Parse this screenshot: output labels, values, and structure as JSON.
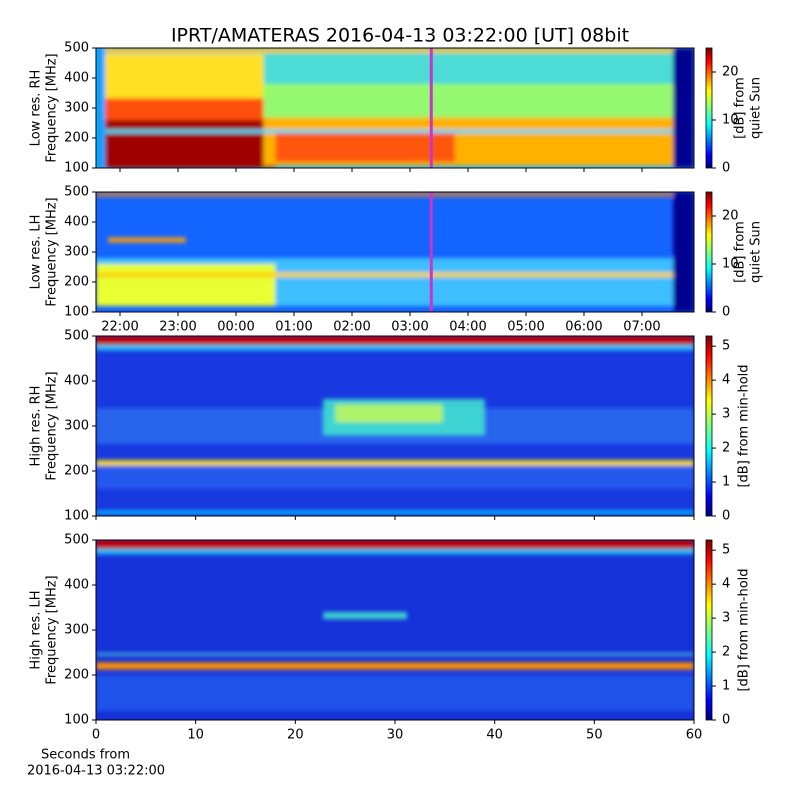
{
  "title": "IPRT/AMATERAS 2016-04-13 03:22:00 [UT]   08bit",
  "chart_data": [
    {
      "type": "heatmap",
      "ylabel": [
        "Low res. RH",
        "Frequency [MHz]"
      ],
      "ylim": [
        100,
        500
      ],
      "yticks": [
        100,
        200,
        300,
        400,
        500
      ],
      "xlim": [
        21.586,
        31.897
      ],
      "xticks": [
        22,
        23,
        24,
        25,
        26,
        27,
        28,
        29,
        30,
        31
      ],
      "cursor": 27.367,
      "cursor_color": "#cc33cc",
      "colorbar": {
        "label": [
          "[dB] from",
          "quiet Sun"
        ],
        "lim": [
          0,
          25
        ],
        "ticks": [
          0,
          10,
          20
        ]
      }
    },
    {
      "type": "heatmap",
      "ylabel": [
        "Low res. LH",
        "Frequency [MHz]"
      ],
      "ylim": [
        100,
        500
      ],
      "yticks": [
        100,
        200,
        300,
        400,
        500
      ],
      "xlim": [
        21.586,
        31.897
      ],
      "xticks": [
        {
          "value": 22,
          "label": "22:00"
        },
        {
          "value": 23,
          "label": "23:00"
        },
        {
          "value": 24,
          "label": "00:00"
        },
        {
          "value": 25,
          "label": "01:00"
        },
        {
          "value": 26,
          "label": "02:00"
        },
        {
          "value": 27,
          "label": "03:00"
        },
        {
          "value": 28,
          "label": "04:00"
        },
        {
          "value": 29,
          "label": "05:00"
        },
        {
          "value": 30,
          "label": "06:00"
        },
        {
          "value": 31,
          "label": "07:00"
        }
      ],
      "cursor": 27.367,
      "cursor_color": "#cc33cc",
      "colorbar": {
        "label": [
          "[dB] from",
          "quiet Sun"
        ],
        "lim": [
          0,
          25
        ],
        "ticks": [
          0,
          10,
          20
        ]
      }
    },
    {
      "type": "heatmap",
      "ylabel": [
        "High res. RH",
        "Frequency [MHz]"
      ],
      "ylim": [
        100,
        500
      ],
      "yticks": [
        100,
        200,
        300,
        400,
        500
      ],
      "xlim": [
        0,
        60
      ],
      "xticks": [
        0,
        10,
        20,
        30,
        40,
        50,
        60
      ],
      "colorbar": {
        "label": [
          "[dB] from min-hold"
        ],
        "lim": [
          0,
          5.3
        ],
        "ticks": [
          0,
          1,
          2,
          3,
          4,
          5
        ]
      }
    },
    {
      "type": "heatmap",
      "ylabel": [
        "High res. LH",
        "Frequency [MHz]"
      ],
      "ylim": [
        100,
        500
      ],
      "yticks": [
        100,
        200,
        300,
        400,
        500
      ],
      "xlim": [
        0,
        60
      ],
      "xticks": [
        0,
        10,
        20,
        30,
        40,
        50,
        60
      ],
      "xlabel": [
        "Seconds from",
        "2016-04-13 03:22:00"
      ],
      "colorbar": {
        "label": [
          "[dB] from min-hold"
        ],
        "lim": [
          0,
          5.3
        ],
        "ticks": [
          0,
          1,
          2,
          3,
          4,
          5
        ]
      }
    }
  ]
}
